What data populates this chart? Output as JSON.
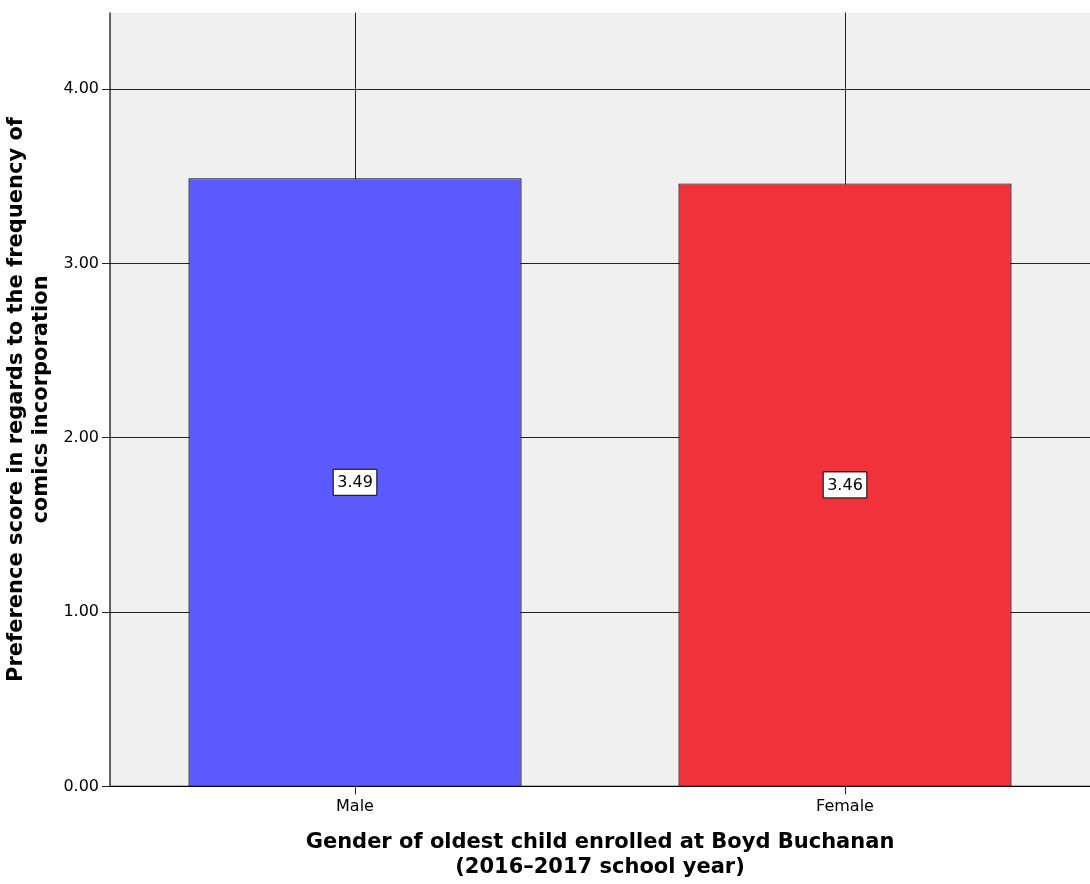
{
  "chart_data": {
    "type": "bar",
    "xlabel": "Gender of oldest child enrolled at Boyd Buchanan\n(2016–2017 school year)",
    "ylabel": "Preference score in regards to the frequency of\ncomics incorporation",
    "categories": [
      "Male",
      "Female"
    ],
    "values": [
      3.49,
      3.46
    ],
    "colors": [
      "#5a5aff",
      "#f0323a"
    ],
    "ylim": [
      0,
      4.44
    ],
    "yticks": [
      {
        "value": 0,
        "label": "0.00"
      },
      {
        "value": 1,
        "label": "1.00"
      },
      {
        "value": 2,
        "label": "2.00"
      },
      {
        "value": 3,
        "label": "3.00"
      },
      {
        "value": 4,
        "label": "4.00"
      }
    ],
    "grid": true,
    "data_labels": true
  }
}
